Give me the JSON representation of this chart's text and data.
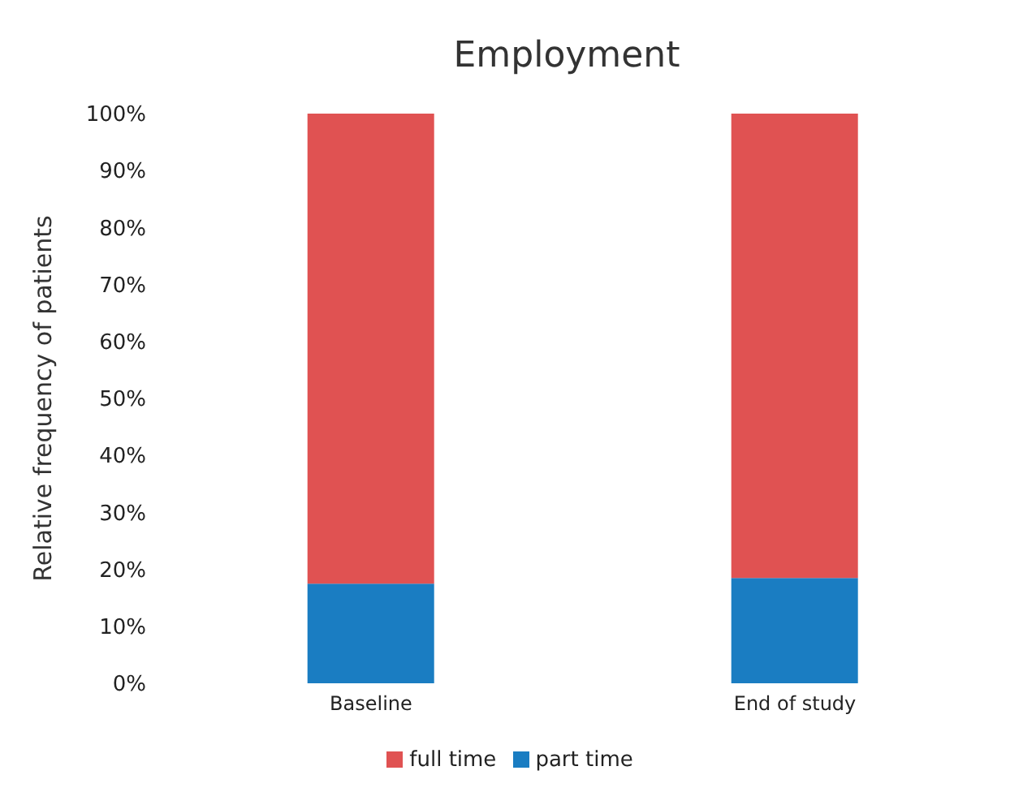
{
  "chart_data": {
    "type": "bar",
    "title": "Employment",
    "ylabel": "Relative frequency of patients",
    "categories": [
      "Baseline",
      "End of study"
    ],
    "stacked": true,
    "series": [
      {
        "name": "part time",
        "color": "#1a7dc2",
        "values": [
          17.5,
          18.5
        ]
      },
      {
        "name": "full time",
        "color": "#e05252",
        "values": [
          82.5,
          81.5
        ]
      }
    ],
    "ylim": [
      0,
      100
    ],
    "yticks": [
      {
        "value": 0,
        "label": "0%"
      },
      {
        "value": 10,
        "label": "10%"
      },
      {
        "value": 20,
        "label": "20%"
      },
      {
        "value": 30,
        "label": "30%"
      },
      {
        "value": 40,
        "label": "40%"
      },
      {
        "value": 50,
        "label": "50%"
      },
      {
        "value": 60,
        "label": "60%"
      },
      {
        "value": 70,
        "label": "70%"
      },
      {
        "value": 80,
        "label": "80%"
      },
      {
        "value": 90,
        "label": "90%"
      },
      {
        "value": 100,
        "label": "100%"
      }
    ],
    "grid": false,
    "legend": "bottom"
  }
}
